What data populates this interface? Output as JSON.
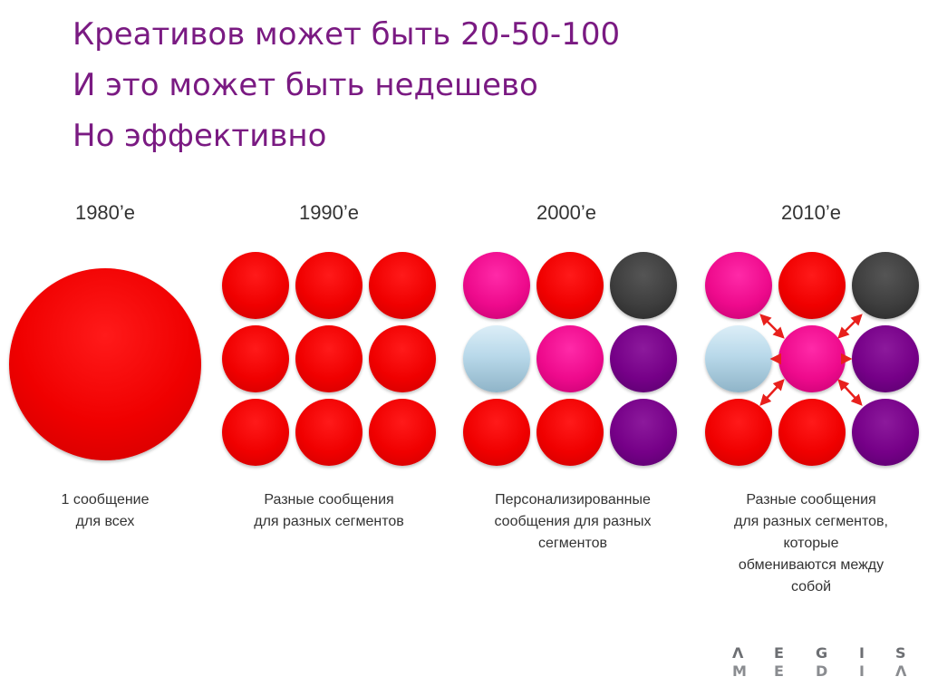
{
  "title": {
    "line1": "Креативов может быть 20-50-100",
    "line2": "И это может быть недешево",
    "line3": "Но эффективно"
  },
  "columns": [
    {
      "decade": "1980’е",
      "caption_lines": [
        "1 сообщение",
        "для всех"
      ]
    },
    {
      "decade": "1990’е",
      "caption_lines": [
        "Разные сообщения",
        "для разных сегментов"
      ]
    },
    {
      "decade": "2000’е",
      "caption_lines": [
        "Персонализированные",
        "сообщения для разных",
        "сегментов"
      ]
    },
    {
      "decade": "2010’е",
      "caption_lines": [
        "Разные сообщения",
        "для разных сегментов,",
        "которые",
        "обмениваются между",
        "собой"
      ]
    }
  ],
  "grids": {
    "col2": [
      "red",
      "red",
      "red",
      "red",
      "red",
      "red",
      "red",
      "red",
      "red"
    ],
    "col3": [
      "pink",
      "red",
      "dark",
      "light",
      "pink",
      "purple",
      "red",
      "red",
      "purple"
    ],
    "col4": [
      "pink",
      "red",
      "dark",
      "light",
      "pink",
      "purple",
      "red",
      "red",
      "purple"
    ]
  },
  "colors": {
    "title": "#7a1a82",
    "red": "#f00000",
    "pink": "#ee0a8c",
    "dark": "#3e3e3e",
    "light": "#b9d9ea",
    "purple": "#760088",
    "arrow": "#e8201c"
  },
  "logo": {
    "top": [
      "Λ",
      "E",
      "G",
      "I",
      "S"
    ],
    "bottom": [
      "M",
      "E",
      "D",
      "I",
      "Λ"
    ]
  }
}
